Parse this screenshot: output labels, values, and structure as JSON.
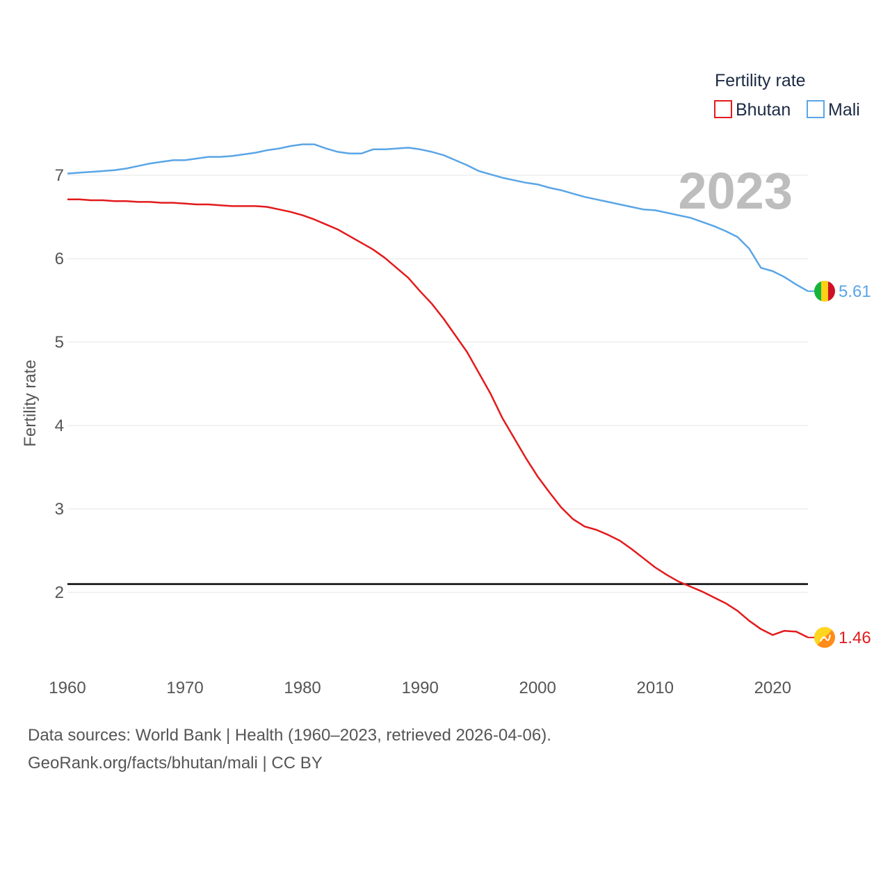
{
  "chart_data": {
    "type": "line",
    "title": "Fertility rate",
    "year_label": "2023",
    "xlabel": "",
    "ylabel": "Fertility rate",
    "xlim": [
      1960,
      2023
    ],
    "ylim": [
      1.1,
      7.6
    ],
    "x_ticks": [
      1960,
      1970,
      1980,
      1990,
      2000,
      2010,
      2020
    ],
    "y_ticks": [
      2,
      3,
      4,
      5,
      6,
      7
    ],
    "reference_line": {
      "value": 2.1,
      "color": "#000000"
    },
    "x": [
      1960,
      1961,
      1962,
      1963,
      1964,
      1965,
      1966,
      1967,
      1968,
      1969,
      1970,
      1971,
      1972,
      1973,
      1974,
      1975,
      1976,
      1977,
      1978,
      1979,
      1980,
      1981,
      1982,
      1983,
      1984,
      1985,
      1986,
      1987,
      1988,
      1989,
      1990,
      1991,
      1992,
      1993,
      1994,
      1995,
      1996,
      1997,
      1998,
      1999,
      2000,
      2001,
      2002,
      2003,
      2004,
      2005,
      2006,
      2007,
      2008,
      2009,
      2010,
      2011,
      2012,
      2013,
      2014,
      2015,
      2016,
      2017,
      2018,
      2019,
      2020,
      2021,
      2022,
      2023
    ],
    "series": [
      {
        "name": "Bhutan",
        "color": "#e31a1c",
        "end_value_label": "1.46",
        "values": [
          6.71,
          6.71,
          6.7,
          6.7,
          6.69,
          6.69,
          6.68,
          6.68,
          6.67,
          6.67,
          6.66,
          6.65,
          6.65,
          6.64,
          6.63,
          6.63,
          6.63,
          6.62,
          6.59,
          6.56,
          6.52,
          6.47,
          6.41,
          6.35,
          6.27,
          6.19,
          6.11,
          6.01,
          5.89,
          5.77,
          5.61,
          5.46,
          5.28,
          5.08,
          4.88,
          4.63,
          4.38,
          4.09,
          3.85,
          3.61,
          3.39,
          3.2,
          3.02,
          2.88,
          2.79,
          2.75,
          2.69,
          2.62,
          2.52,
          2.41,
          2.3,
          2.21,
          2.13,
          2.07,
          2.01,
          1.94,
          1.87,
          1.78,
          1.66,
          1.56,
          1.49,
          1.54,
          1.53,
          1.46
        ]
      },
      {
        "name": "Mali",
        "color": "#5aa5e6",
        "end_value_label": "5.61",
        "values": [
          7.02,
          7.03,
          7.04,
          7.05,
          7.06,
          7.08,
          7.11,
          7.14,
          7.16,
          7.18,
          7.18,
          7.2,
          7.22,
          7.22,
          7.23,
          7.25,
          7.27,
          7.3,
          7.32,
          7.35,
          7.37,
          7.37,
          7.32,
          7.28,
          7.26,
          7.26,
          7.31,
          7.31,
          7.32,
          7.33,
          7.31,
          7.28,
          7.24,
          7.18,
          7.12,
          7.05,
          7.01,
          6.97,
          6.94,
          6.91,
          6.89,
          6.85,
          6.82,
          6.78,
          6.74,
          6.71,
          6.68,
          6.65,
          6.62,
          6.59,
          6.58,
          6.55,
          6.52,
          6.49,
          6.44,
          6.39,
          6.33,
          6.26,
          6.12,
          5.89,
          5.85,
          5.78,
          5.69,
          5.61
        ]
      }
    ]
  },
  "legend": {
    "title": "Fertility rate",
    "items": [
      {
        "label": "Bhutan",
        "color": "#e31a1c"
      },
      {
        "label": "Mali",
        "color": "#5aa5e6"
      }
    ]
  },
  "footer": {
    "source_line": "Data sources: World Bank | Health (1960–2023, retrieved 2026-04-06).",
    "url_line": "GeoRank.org/facts/bhutan/mali | CC BY"
  }
}
